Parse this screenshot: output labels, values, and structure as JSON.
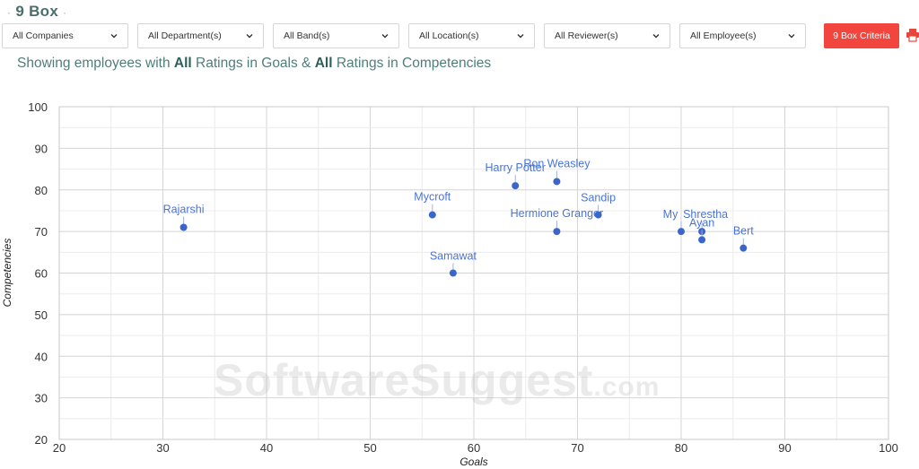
{
  "header": {
    "title": "9 Box",
    "filters": [
      {
        "label": "All Companies"
      },
      {
        "label": "All Department(s)"
      },
      {
        "label": "All Band(s)"
      },
      {
        "label": "All Location(s)"
      },
      {
        "label": "All Reviewer(s)"
      },
      {
        "label": "All Employee(s)"
      }
    ],
    "criteria_label": "9 Box Criteria"
  },
  "subtitle": {
    "pre": "Showing employees with ",
    "goals_scope": "All",
    "mid": " Ratings in Goals & ",
    "comp_scope": "All",
    "post": " Ratings in Competencies"
  },
  "watermark": {
    "main": "SoftwareSuggest",
    "suffix": ".com"
  },
  "colors": {
    "accent": "#f1453d",
    "point": "#3a66cc",
    "label": "#4a74d6",
    "grid": "#d9d9d9"
  },
  "chart_data": {
    "type": "scatter",
    "xlabel": "Goals",
    "ylabel": "Competencies",
    "xlim": [
      20,
      100
    ],
    "ylim": [
      20,
      100
    ],
    "xticks": [
      20,
      30,
      40,
      50,
      60,
      70,
      80,
      90,
      100
    ],
    "yticks": [
      20,
      30,
      40,
      50,
      60,
      70,
      80,
      90,
      100
    ],
    "grid": true,
    "points": [
      {
        "name": "Rajarshi",
        "x": 32,
        "y": 71
      },
      {
        "name": "Mycroft",
        "x": 56,
        "y": 74
      },
      {
        "name": "Samawat",
        "x": 58,
        "y": 60
      },
      {
        "name": "Harry Potter",
        "x": 64,
        "y": 81
      },
      {
        "name": "Ron Weasley",
        "x": 68,
        "y": 82
      },
      {
        "name": "Hermione Granger",
        "x": 68,
        "y": 70
      },
      {
        "name": "Sandip",
        "x": 72,
        "y": 74
      },
      {
        "name": "My",
        "x": 80,
        "y": 70
      },
      {
        "name": "Shrestha",
        "x": 82,
        "y": 70
      },
      {
        "name": "Ayan",
        "x": 82,
        "y": 68
      },
      {
        "name": "Bert",
        "x": 86,
        "y": 66
      }
    ]
  }
}
